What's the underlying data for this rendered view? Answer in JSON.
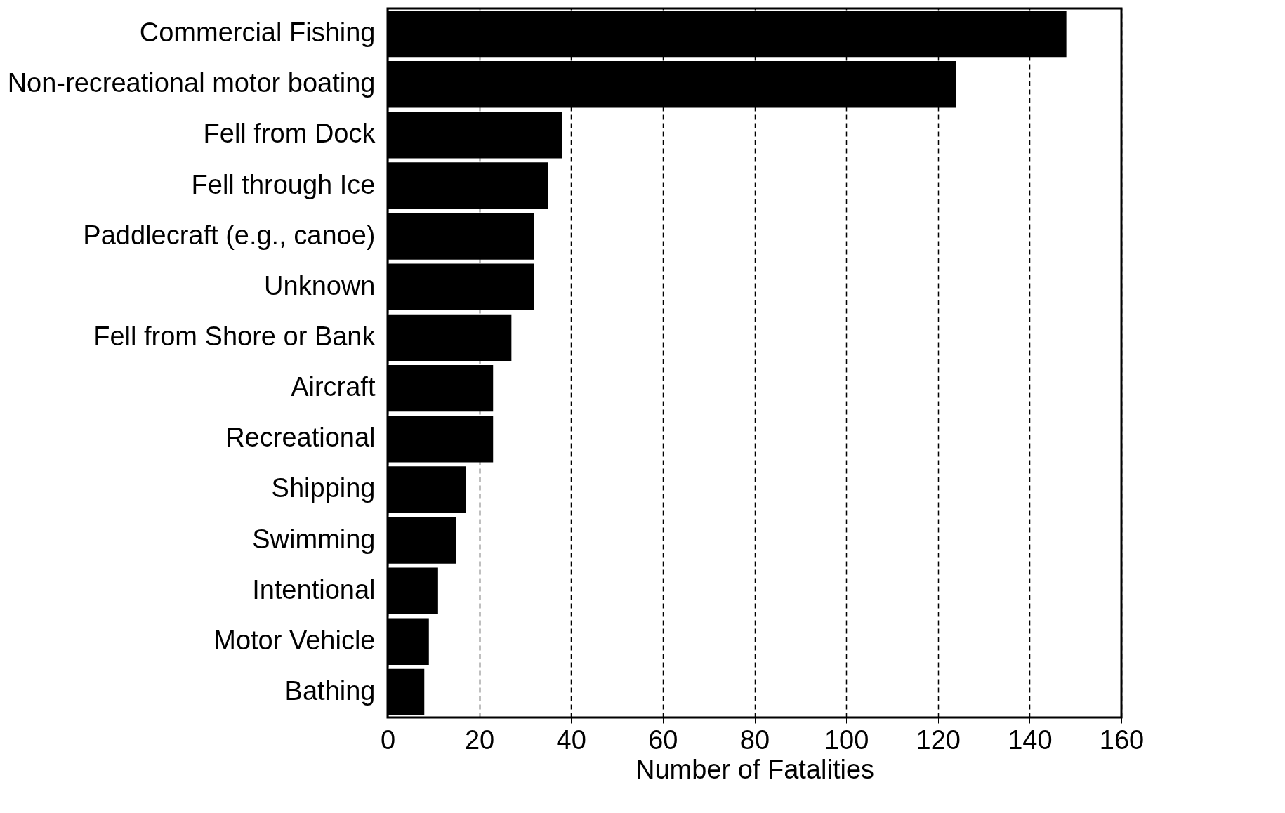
{
  "chart_data": {
    "type": "bar",
    "orientation": "horizontal",
    "xlabel": "Number of Fatalities",
    "categories": [
      "Commercial Fishing",
      "Non-recreational motor boating",
      "Fell from Dock",
      "Fell through Ice",
      "Paddlecraft (e.g., canoe)",
      "Unknown",
      "Fell from Shore or Bank",
      "Aircraft",
      "Recreational",
      "Shipping",
      "Swimming",
      "Intentional",
      "Motor Vehicle",
      "Bathing"
    ],
    "values": [
      148,
      124,
      38,
      35,
      32,
      32,
      27,
      23,
      23,
      17,
      15,
      11,
      9,
      8
    ],
    "color": "#000000",
    "xlim": [
      0,
      160
    ],
    "xticks": [
      0,
      20,
      40,
      60,
      80,
      100,
      120,
      140,
      160
    ],
    "grid": "x"
  }
}
